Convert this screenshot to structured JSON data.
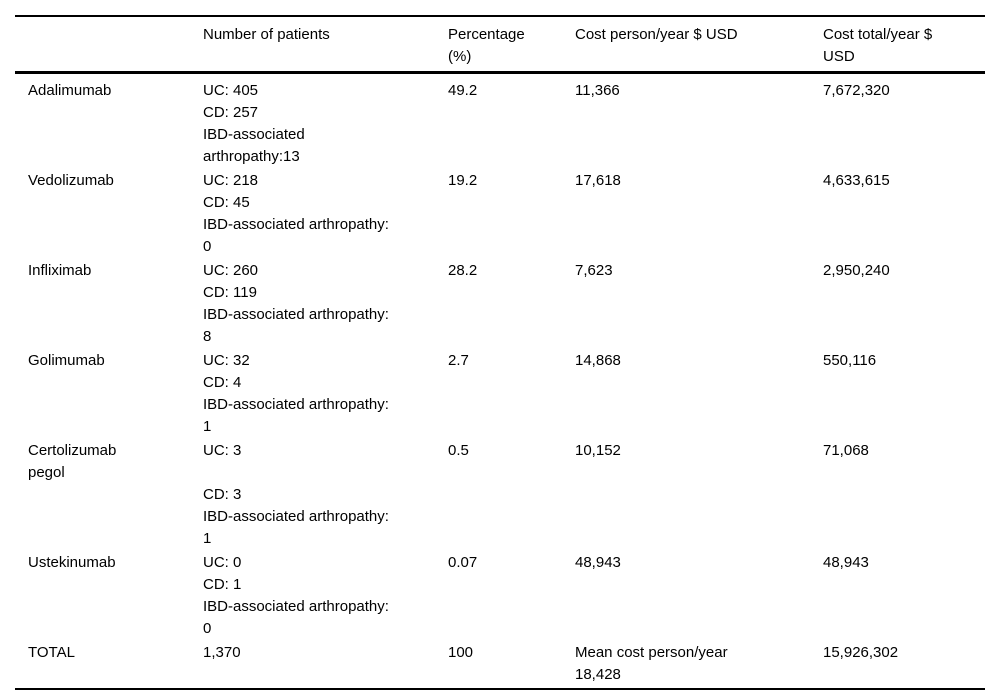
{
  "page": {
    "background_color": "#ffffff",
    "text_color": "#000000",
    "rule_color": "#000000"
  },
  "table": {
    "headers": {
      "drug": "",
      "patients": [
        "Number of patients"
      ],
      "percentage": [
        "Percentage",
        "(%)"
      ],
      "cost_person": [
        "Cost person/year $ USD"
      ],
      "cost_total": [
        "Cost total/year $",
        "USD"
      ]
    },
    "rows": [
      {
        "name": [
          "Adalimumab"
        ],
        "patients": [
          "UC: 405",
          "CD: 257",
          "IBD-associated",
          "arthropathy:13"
        ],
        "percentage": [
          "49.2"
        ],
        "cost_person": [
          "11,366"
        ],
        "cost_total": [
          "7,672,320"
        ]
      },
      {
        "name": [
          "Vedolizumab"
        ],
        "patients": [
          "UC: 218",
          "CD: 45",
          "IBD-associated arthropathy:",
          "0"
        ],
        "percentage": [
          "19.2"
        ],
        "cost_person": [
          "17,618"
        ],
        "cost_total": [
          "4,633,615"
        ]
      },
      {
        "name": [
          "Infliximab"
        ],
        "patients": [
          "UC: 260",
          "CD: 119",
          "IBD-associated arthropathy:",
          "8"
        ],
        "percentage": [
          "28.2"
        ],
        "cost_person": [
          "7,623"
        ],
        "cost_total": [
          "2,950,240"
        ]
      },
      {
        "name": [
          "Golimumab"
        ],
        "patients": [
          "UC: 32",
          "CD: 4",
          "IBD-associated arthropathy:",
          "1"
        ],
        "percentage": [
          "2.7"
        ],
        "cost_person": [
          "14,868"
        ],
        "cost_total": [
          "550,116"
        ]
      },
      {
        "name": [
          "Certolizumab",
          "pegol"
        ],
        "patients": [
          "UC: 3",
          "",
          "CD: 3",
          "IBD-associated arthropathy:",
          "1"
        ],
        "percentage": [
          "0.5"
        ],
        "cost_person": [
          "10,152"
        ],
        "cost_total": [
          "71,068"
        ]
      },
      {
        "name": [
          "Ustekinumab"
        ],
        "patients": [
          "UC: 0",
          "CD: 1",
          "IBD-associated arthropathy:",
          "0"
        ],
        "percentage": [
          "0.07"
        ],
        "cost_person": [
          "48,943"
        ],
        "cost_total": [
          "48,943"
        ]
      },
      {
        "name": [
          "TOTAL"
        ],
        "patients": [
          "1,370"
        ],
        "percentage": [
          "100"
        ],
        "cost_person": [
          "Mean cost person/year",
          "18,428"
        ],
        "cost_total": [
          "15,926,302"
        ]
      }
    ]
  }
}
